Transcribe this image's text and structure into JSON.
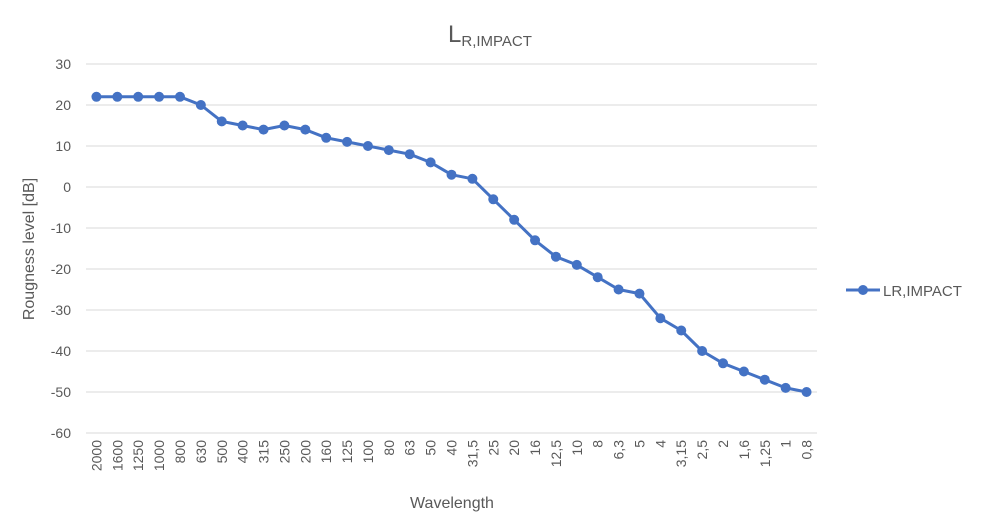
{
  "chart_data": {
    "type": "line",
    "title": {
      "main": "L",
      "sub": "R,IMPACT"
    },
    "xlabel": "Wavelength",
    "ylabel": "Rougness level [dB]",
    "ylim": [
      -60,
      30
    ],
    "yticks": [
      30,
      20,
      10,
      0,
      -10,
      -20,
      -30,
      -40,
      -50,
      -60
    ],
    "grid": true,
    "legend_position": "right",
    "categories": [
      "2000",
      "1600",
      "1250",
      "1000",
      "800",
      "630",
      "500",
      "400",
      "315",
      "250",
      "200",
      "160",
      "125",
      "100",
      "80",
      "63",
      "50",
      "40",
      "31,5",
      "25",
      "20",
      "16",
      "12,5",
      "10",
      "8",
      "6,3",
      "5",
      "4",
      "3,15",
      "2,5",
      "2",
      "1,6",
      "1,25",
      "1",
      "0,8"
    ],
    "series": [
      {
        "name": "LR,IMPACT",
        "color": "#4472c4",
        "values": [
          22,
          22,
          22,
          22,
          22,
          20,
          16,
          15,
          14,
          15,
          14,
          12,
          11,
          10,
          9,
          8,
          6,
          3,
          2,
          -3,
          -8,
          -13,
          -17,
          -19,
          -22,
          -25,
          -26,
          -32,
          -35,
          -40,
          -43,
          -45,
          -47,
          -49,
          -50
        ]
      }
    ]
  }
}
